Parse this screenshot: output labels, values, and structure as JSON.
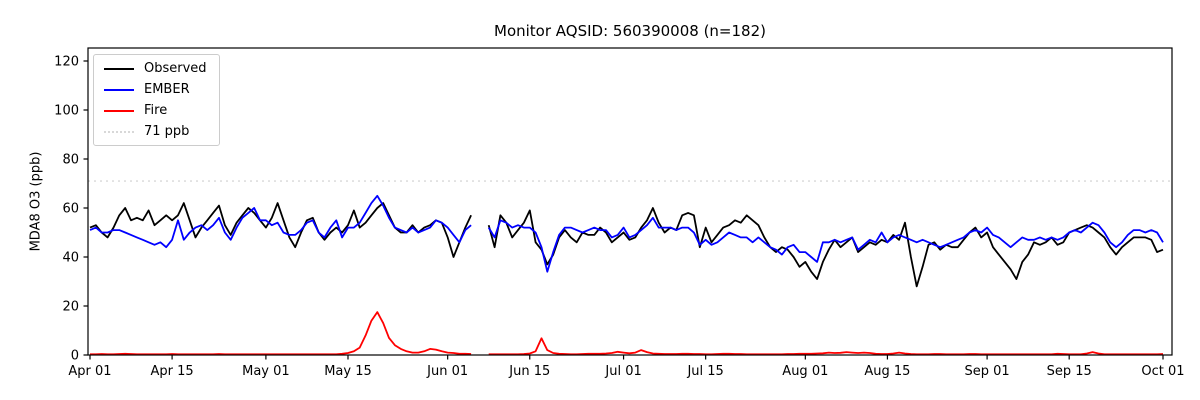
{
  "header": {
    "title": "Monitor AQSID: 560390008 (n=182)"
  },
  "legend": {
    "items": [
      {
        "label": "Observed",
        "color": "#000000",
        "style": "solid"
      },
      {
        "label": "EMBER",
        "color": "#0000ff",
        "style": "solid"
      },
      {
        "label": "Fire",
        "color": "#ff0000",
        "style": "solid"
      },
      {
        "label": "71 ppb",
        "color": "#d8d8d8",
        "style": "dotted"
      }
    ]
  },
  "chart_data": {
    "type": "line",
    "title": "Monitor AQSID: 560390008 (n=182)",
    "xlabel": "",
    "ylabel": "MDA8 O3 (ppb)",
    "x_unit": "days since Apr 01, daily values; nulls = missing days (Jun 06-07)",
    "ylim": [
      0,
      125
    ],
    "yticks": [
      0,
      20,
      40,
      60,
      80,
      100,
      120
    ],
    "xticks": [
      {
        "label": "Apr 01",
        "day": 0
      },
      {
        "label": "Apr 15",
        "day": 14
      },
      {
        "label": "May 01",
        "day": 30
      },
      {
        "label": "May 15",
        "day": 44
      },
      {
        "label": "Jun 01",
        "day": 61
      },
      {
        "label": "Jun 15",
        "day": 75
      },
      {
        "label": "Jul 01",
        "day": 91
      },
      {
        "label": "Jul 15",
        "day": 105
      },
      {
        "label": "Aug 01",
        "day": 122
      },
      {
        "label": "Aug 15",
        "day": 136
      },
      {
        "label": "Sep 01",
        "day": 153
      },
      {
        "label": "Sep 15",
        "day": 167
      },
      {
        "label": "Oct 01",
        "day": 183
      }
    ],
    "threshold": {
      "label": "71 ppb",
      "value": 71,
      "color": "#d8d8d8",
      "style": "dotted"
    },
    "grid": false,
    "legend_position": "upper left",
    "series": [
      {
        "name": "Observed",
        "color": "#000000",
        "values": [
          52,
          53,
          50,
          48,
          52,
          57,
          60,
          55,
          56,
          55,
          59,
          53,
          55,
          57,
          55,
          57,
          62,
          55,
          48,
          52,
          55,
          58,
          61,
          53,
          49,
          54,
          57,
          60,
          58,
          55,
          52,
          56,
          62,
          55,
          48,
          44,
          50,
          55,
          56,
          50,
          47,
          50,
          52,
          50,
          53,
          59,
          52,
          54,
          57,
          60,
          62,
          57,
          52,
          50,
          50,
          53,
          50,
          52,
          53,
          55,
          54,
          48,
          40,
          46,
          52,
          57,
          null,
          null,
          53,
          44,
          57,
          54,
          48,
          51,
          54,
          59,
          46,
          43,
          37,
          41,
          48,
          51,
          48,
          46,
          50,
          49,
          49,
          52,
          50,
          46,
          48,
          50,
          47,
          48,
          52,
          55,
          60,
          54,
          50,
          52,
          51,
          57,
          58,
          57,
          44,
          52,
          46,
          49,
          52,
          53,
          55,
          54,
          57,
          55,
          53,
          48,
          44,
          42,
          44,
          43,
          40,
          36,
          38,
          34,
          31,
          38,
          43,
          47,
          44,
          46,
          48,
          42,
          44,
          46,
          45,
          47,
          46,
          49,
          47,
          54,
          40,
          28,
          36,
          45,
          46,
          43,
          45,
          44,
          44,
          47,
          50,
          52,
          48,
          50,
          44,
          41,
          38,
          35,
          31,
          38,
          41,
          46,
          45,
          46,
          48,
          45,
          46,
          50,
          51,
          52,
          53,
          52,
          50,
          48,
          44,
          41,
          44,
          46,
          48,
          48,
          48,
          47,
          42,
          43
        ]
      },
      {
        "name": "EMBER",
        "color": "#0000ff",
        "values": [
          51,
          52,
          50,
          50,
          51,
          51,
          50,
          49,
          48,
          47,
          46,
          45,
          46,
          44,
          47,
          55,
          47,
          50,
          52,
          53,
          51,
          53,
          56,
          50,
          47,
          52,
          56,
          58,
          60,
          55,
          55,
          53,
          54,
          50,
          49,
          49,
          51,
          54,
          55,
          50,
          48,
          52,
          55,
          48,
          52,
          52,
          54,
          58,
          62,
          65,
          61,
          56,
          52,
          51,
          50,
          52,
          50,
          51,
          52,
          55,
          54,
          52,
          49,
          46,
          51,
          53,
          null,
          null,
          52,
          48,
          55,
          54,
          52,
          53,
          52,
          52,
          50,
          44,
          34,
          42,
          49,
          52,
          52,
          51,
          50,
          51,
          52,
          51,
          51,
          48,
          49,
          52,
          48,
          49,
          51,
          53,
          56,
          52,
          52,
          52,
          51,
          52,
          52,
          50,
          45,
          47,
          45,
          46,
          48,
          50,
          49,
          48,
          48,
          46,
          48,
          46,
          44,
          43,
          41,
          44,
          45,
          42,
          42,
          40,
          38,
          46,
          46,
          47,
          46,
          47,
          48,
          43,
          45,
          47,
          46,
          50,
          46,
          48,
          49,
          48,
          47,
          46,
          47,
          46,
          45,
          44,
          45,
          46,
          47,
          48,
          50,
          51,
          50,
          52,
          49,
          48,
          46,
          44,
          46,
          48,
          47,
          47,
          48,
          47,
          48,
          47,
          48,
          50,
          51,
          50,
          52,
          54,
          53,
          50,
          46,
          44,
          46,
          49,
          51,
          51,
          50,
          51,
          50,
          46
        ]
      },
      {
        "name": "Fire",
        "color": "#ff0000",
        "values": [
          0.3,
          0.3,
          0.4,
          0.3,
          0.3,
          0.4,
          0.5,
          0.4,
          0.3,
          0.3,
          0.3,
          0.3,
          0.3,
          0.3,
          0.4,
          0.3,
          0.3,
          0.3,
          0.3,
          0.3,
          0.3,
          0.3,
          0.4,
          0.3,
          0.3,
          0.3,
          0.3,
          0.3,
          0.3,
          0.3,
          0.3,
          0.3,
          0.3,
          0.3,
          0.3,
          0.3,
          0.3,
          0.3,
          0.3,
          0.3,
          0.3,
          0.3,
          0.3,
          0.5,
          0.8,
          1.5,
          3,
          8,
          14,
          17.5,
          13,
          7,
          4,
          2.5,
          1.5,
          1,
          1,
          1.5,
          2.5,
          2.2,
          1.5,
          1,
          0.8,
          0.5,
          0.5,
          0.4,
          null,
          null,
          0.3,
          0.3,
          0.3,
          0.3,
          0.3,
          0.3,
          0.4,
          0.6,
          1.5,
          6.8,
          2,
          0.8,
          0.5,
          0.4,
          0.3,
          0.3,
          0.4,
          0.5,
          0.5,
          0.5,
          0.6,
          0.8,
          1.3,
          1,
          0.7,
          1,
          2,
          1.2,
          0.6,
          0.5,
          0.4,
          0.4,
          0.4,
          0.5,
          0.5,
          0.4,
          0.4,
          0.3,
          0.3,
          0.4,
          0.5,
          0.5,
          0.4,
          0.4,
          0.3,
          0.3,
          0.3,
          0.3,
          0.3,
          0.3,
          0.3,
          0.4,
          0.4,
          0.5,
          0.5,
          0.5,
          0.6,
          0.7,
          1,
          0.8,
          0.9,
          1.2,
          1,
          0.8,
          1,
          0.8,
          0.5,
          0.4,
          0.4,
          0.6,
          1,
          0.6,
          0.4,
          0.3,
          0.3,
          0.3,
          0.4,
          0.4,
          0.3,
          0.3,
          0.3,
          0.3,
          0.4,
          0.4,
          0.3,
          0.3,
          0.3,
          0.3,
          0.3,
          0.3,
          0.3,
          0.3,
          0.3,
          0.3,
          0.3,
          0.3,
          0.3,
          0.5,
          0.4,
          0.3,
          0.3,
          0.3,
          0.6,
          1.2,
          0.6,
          0.3,
          0.3,
          0.3,
          0.3,
          0.3,
          0.3,
          0.3,
          0.3,
          0.3,
          0.3,
          0.4
        ]
      }
    ]
  }
}
